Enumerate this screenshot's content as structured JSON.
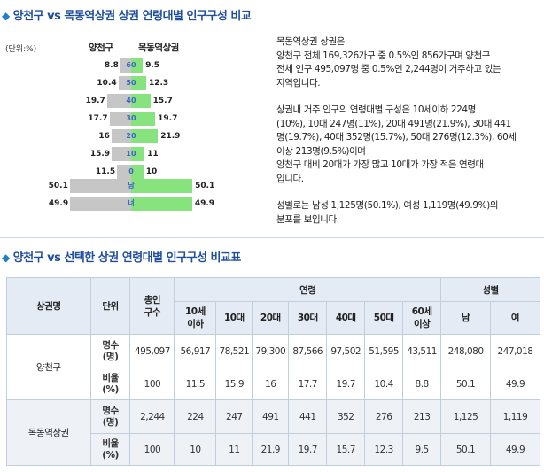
{
  "section1": {
    "title": "양천구 vs 목동역상권 상권 연령대별 인구구성 비교"
  },
  "section2": {
    "title": "양천구 vs 선택한 상권 연령대별 인구구성 비교표"
  },
  "chart": {
    "unit_label": "(단위:%)",
    "left_header": "양천구",
    "right_header": "목동역상권"
  },
  "chart_data": {
    "type": "bar",
    "categories": [
      "60",
      "50",
      "40",
      "30",
      "20",
      "10",
      "0",
      "남",
      "녀"
    ],
    "series": [
      {
        "name": "양천구",
        "values": [
          8.8,
          10.4,
          19.7,
          17.7,
          16,
          15.9,
          11.5,
          50.1,
          49.9
        ],
        "color": "#c6c6c6"
      },
      {
        "name": "목동역상권",
        "values": [
          9.5,
          12.3,
          15.7,
          19.7,
          21.9,
          11,
          10,
          50.1,
          49.9
        ],
        "color": "#87e37d"
      }
    ],
    "value_labels_left": [
      "8.8",
      "10.4",
      "19.7",
      "17.7",
      "16",
      "15.9",
      "11.5",
      "50.1",
      "49.9"
    ],
    "value_labels_right": [
      "9.5",
      "12.3",
      "15.7",
      "19.7",
      "21.9",
      "11",
      "10",
      "50.1",
      "49.9"
    ]
  },
  "description": {
    "p1": [
      "목동역상권 상권은",
      "양천구 전체 169,326가구 중 0.5%인 856가구며 양천구",
      "전체 인구 495,097명 중 0.5%인 2,244명이 거주하고 있는",
      "지역입니다."
    ],
    "p2": [
      "상권내 거주 인구의 연령대별 구성은 10세이하 224명",
      "(10%), 10대 247명(11%), 20대 491명(21.9%), 30대 441",
      "명(19.7%), 40대 352명(15.7%), 50대 276명(12.3%), 60세",
      "이상 213명(9.5%)이며",
      "양천구 대비 20대가 가장 많고 10대가 가장 적은 연령대",
      "입니다."
    ],
    "p3": [
      "성별로는 남성 1,125명(50.1%), 여성 1,119명(49.9%)의",
      "분포를 보입니다."
    ]
  },
  "table": {
    "headers": {
      "area": "상권명",
      "unit": "단위",
      "total": [
        "총인",
        "구수"
      ],
      "age": "연령",
      "gender": "성별",
      "ages": [
        [
          "10세",
          "이하"
        ],
        [
          "10대"
        ],
        [
          "20대"
        ],
        [
          "30대"
        ],
        [
          "40대"
        ],
        [
          "50대"
        ],
        [
          "60세",
          "이상"
        ]
      ],
      "genders": [
        "남",
        "여"
      ]
    },
    "rows": [
      {
        "name": "양천구",
        "count_unit": [
          "명수",
          "(명)"
        ],
        "ratio_unit": [
          "비율",
          "(%)"
        ],
        "counts": [
          "495,097",
          "56,917",
          "78,521",
          "79,300",
          "87,566",
          "97,502",
          "51,595",
          "43,511",
          "248,080",
          "247,018"
        ],
        "ratios": [
          "100",
          "11.5",
          "15.9",
          "16",
          "17.7",
          "19.7",
          "10.4",
          "8.8",
          "50.1",
          "49.9"
        ]
      },
      {
        "name": "목동역상권",
        "count_unit": [
          "명수",
          "(명)"
        ],
        "ratio_unit": [
          "비율",
          "(%)"
        ],
        "counts": [
          "2,244",
          "224",
          "247",
          "491",
          "441",
          "352",
          "276",
          "213",
          "1,125",
          "1,119"
        ],
        "ratios": [
          "100",
          "10",
          "11",
          "21.9",
          "19.7",
          "15.7",
          "12.3",
          "9.5",
          "50.1",
          "49.9"
        ]
      }
    ]
  }
}
